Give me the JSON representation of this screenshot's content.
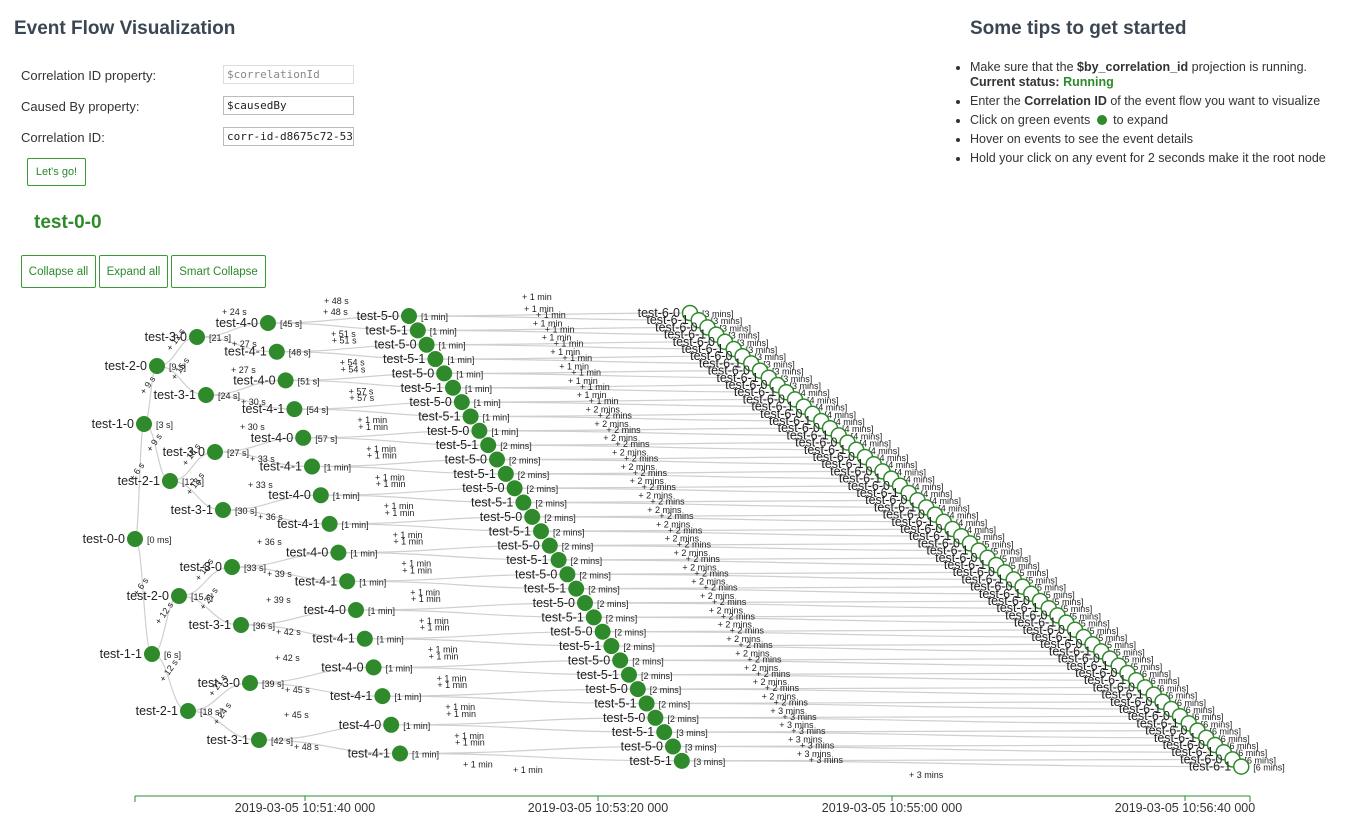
{
  "app": {
    "title": "Event Flow Visualization"
  },
  "form": {
    "correlation_property_label": "Correlation ID property:",
    "correlation_property_placeholder": "$correlationId",
    "caused_by_label": "Caused By property:",
    "caused_by_value": "$causedBy",
    "correlation_id_label": "Correlation ID:",
    "correlation_id_value": "corr-id-d8675c72-5389",
    "go_button": "Let's go!"
  },
  "root": {
    "title": "test-0-0"
  },
  "toolbar": {
    "collapse_all": "Collapse all",
    "expand_all": "Expand all",
    "smart_collapse": "Smart Collapse"
  },
  "tips": {
    "title": "Some tips to get started",
    "t1_pre": "Make sure that the ",
    "t1_bold": "$by_correlation_id",
    "t1_post": " projection is running.",
    "status_label": "Current status: ",
    "status_value": "Running",
    "t2_pre": "Enter the ",
    "t2_bold": "Correlation ID",
    "t2_post": " of the event flow you want to visualize",
    "t3_pre": "Click on green events",
    "t3_post": " to expand",
    "t4": "Hover on events to see the event details",
    "t5": "Hold your click on any event for 2 seconds make it the root node"
  },
  "colors": {
    "node": "#2f8a2c",
    "accent": "#2f8a2c",
    "edge": "#cfcfcf",
    "heading": "#3b4653"
  },
  "graph": {
    "axis_ticks": [
      "2019-03-05 10:51:40 000",
      "2019-03-05 10:53:20 000",
      "2019-03-05 10:55:00 000",
      "2019-03-05 10:56:40 000"
    ],
    "main_nodes": [
      {
        "name": "test-0-0",
        "time": "[0 ms]"
      },
      {
        "name": "test-1-0",
        "time": "[3 s]"
      },
      {
        "name": "test-1-1",
        "time": "[6 s]"
      },
      {
        "name": "test-2-0",
        "time": "[9 s]"
      },
      {
        "name": "test-2-1",
        "time": "[12 s]"
      },
      {
        "name": "test-2-0",
        "time": "[15 s]"
      },
      {
        "name": "test-2-1",
        "time": "[18 s]"
      },
      {
        "name": "test-3-0",
        "time": "[21 s]"
      },
      {
        "name": "test-3-1",
        "time": "[24 s]"
      },
      {
        "name": "test-3-0",
        "time": "[27 s]"
      },
      {
        "name": "test-3-1",
        "time": "[30 s]"
      },
      {
        "name": "test-3-0",
        "time": "[33 s]"
      },
      {
        "name": "test-3-1",
        "time": "[36 s]"
      },
      {
        "name": "test-3-0",
        "time": "[39 s]"
      },
      {
        "name": "test-3-1",
        "time": "[42 s]"
      }
    ],
    "main_edges": [
      {
        "label": "+ 3 s"
      },
      {
        "label": "+ 6 s"
      },
      {
        "label": "+ 6 s"
      },
      {
        "label": "+ 9 s"
      },
      {
        "label": "+ 9 s"
      },
      {
        "label": "+ 12 s"
      },
      {
        "label": "+ 12 s"
      },
      {
        "label": "+ 12 s"
      },
      {
        "label": "+ 15 s"
      },
      {
        "label": "+ 15 s"
      },
      {
        "label": "+ 18 s"
      },
      {
        "label": "+ 18 s"
      },
      {
        "label": "+ 21 s"
      },
      {
        "label": "+ 21 s"
      },
      {
        "label": "+ 24 s"
      }
    ],
    "layer4": [
      {
        "name": "test-4-0",
        "time": "[45 s]",
        "edge": "+ 24 s"
      },
      {
        "name": "test-4-1",
        "time": "[48 s]",
        "edge": "+ 27 s"
      },
      {
        "name": "test-4-0",
        "time": "[51 s]",
        "edge": "+ 27 s"
      },
      {
        "name": "test-4-1",
        "time": "[54 s]",
        "edge": "+ 30 s"
      },
      {
        "name": "test-4-0",
        "time": "[57 s]",
        "edge": "+ 30 s"
      },
      {
        "name": "test-4-1",
        "time": "[1 min]",
        "edge": "+ 33 s"
      },
      {
        "name": "test-4-0",
        "time": "[1 min]",
        "edge": "+ 33 s"
      },
      {
        "name": "test-4-1",
        "time": "[1 min]",
        "edge": "+ 36 s"
      },
      {
        "name": "test-4-0",
        "time": "[1 min]",
        "edge": "+ 36 s"
      },
      {
        "name": "test-4-1",
        "time": "[1 min]",
        "edge": "+ 39 s"
      },
      {
        "name": "test-4-0",
        "time": "[1 min]",
        "edge": "+ 39 s"
      },
      {
        "name": "test-4-1",
        "time": "[1 min]",
        "edge": "+ 42 s"
      },
      {
        "name": "test-4-0",
        "time": "[1 min]",
        "edge": "+ 42 s"
      },
      {
        "name": "test-4-1",
        "time": "[1 min]",
        "edge": "+ 45 s"
      },
      {
        "name": "test-4-0",
        "time": "[1 min]",
        "edge": "+ 45 s"
      },
      {
        "name": "test-4-1",
        "time": "[1 min]",
        "edge": "+ 48 s"
      }
    ],
    "layer5": [
      {
        "name": "test-5-0",
        "time": "[1 min]",
        "edge": "+ 48 s"
      },
      {
        "name": "test-5-1",
        "time": "[1 min]",
        "edge": "+ 51 s"
      },
      {
        "name": "test-5-0",
        "time": "[1 min]",
        "edge": "+ 51 s"
      },
      {
        "name": "test-5-1",
        "time": "[1 min]",
        "edge": "+ 54 s"
      },
      {
        "name": "test-5-0",
        "time": "[1 min]",
        "edge": "+ 54 s"
      },
      {
        "name": "test-5-1",
        "time": "[1 min]",
        "edge": "+ 57 s"
      },
      {
        "name": "test-5-0",
        "time": "[1 min]",
        "edge": "+ 57 s"
      },
      {
        "name": "test-5-1",
        "time": "[1 min]",
        "edge": "+ 1 min"
      },
      {
        "name": "test-5-0",
        "time": "[1 min]",
        "edge": "+ 1 min"
      },
      {
        "name": "test-5-1",
        "time": "[2 mins]",
        "edge": "+ 1 min"
      },
      {
        "name": "test-5-0",
        "time": "[2 mins]",
        "edge": "+ 1 min"
      },
      {
        "name": "test-5-1",
        "time": "[2 mins]",
        "edge": "+ 1 min"
      },
      {
        "name": "test-5-0",
        "time": "[2 mins]",
        "edge": "+ 1 min"
      },
      {
        "name": "test-5-1",
        "time": "[2 mins]",
        "edge": "+ 1 min"
      },
      {
        "name": "test-5-0",
        "time": "[2 mins]",
        "edge": "+ 1 min"
      },
      {
        "name": "test-5-1",
        "time": "[2 mins]",
        "edge": "+ 1 min"
      },
      {
        "name": "test-5-0",
        "time": "[2 mins]",
        "edge": "+ 1 min"
      },
      {
        "name": "test-5-1",
        "time": "[2 mins]",
        "edge": "+ 1 min"
      },
      {
        "name": "test-5-0",
        "time": "[2 mins]",
        "edge": "+ 1 min"
      },
      {
        "name": "test-5-1",
        "time": "[2 mins]",
        "edge": "+ 1 min"
      },
      {
        "name": "test-5-0",
        "time": "[2 mins]",
        "edge": "+ 1 min"
      },
      {
        "name": "test-5-1",
        "time": "[2 mins]",
        "edge": "+ 1 min"
      },
      {
        "name": "test-5-0",
        "time": "[2 mins]",
        "edge": "+ 1 min"
      },
      {
        "name": "test-5-1",
        "time": "[2 mins]",
        "edge": "+ 1 min"
      },
      {
        "name": "test-5-0",
        "time": "[2 mins]",
        "edge": "+ 1 min"
      },
      {
        "name": "test-5-1",
        "time": "[2 mins]",
        "edge": "+ 1 min"
      },
      {
        "name": "test-5-0",
        "time": "[2 mins]",
        "edge": "+ 1 min"
      },
      {
        "name": "test-5-1",
        "time": "[2 mins]",
        "edge": "+ 1 min"
      },
      {
        "name": "test-5-0",
        "time": "[2 mins]",
        "edge": "+ 1 min"
      },
      {
        "name": "test-5-1",
        "time": "[3 mins]",
        "edge": "+ 1 min"
      },
      {
        "name": "test-5-0",
        "time": "[3 mins]",
        "edge": "+ 1 min"
      },
      {
        "name": "test-5-1",
        "time": "[3 mins]",
        "edge": "+ 1 min"
      }
    ],
    "layer6_label": "test-6-0",
    "layer6_labels": [
      "test-6-0",
      "test-6-1"
    ],
    "layer6_times": [
      "[3 mins]",
      "[3 mins]",
      "[3 mins]",
      "[3 mins]",
      "[3 mins]",
      "[3 mins]",
      "[3 mins]",
      "[3 mins]",
      "[3 mins]",
      "[3 mins]",
      "[3 mins]",
      "[4 mins]",
      "[4 mins]",
      "[4 mins]",
      "[4 mins]",
      "[4 mins]",
      "[4 mins]",
      "[4 mins]",
      "[4 mins]",
      "[4 mins]",
      "[4 mins]",
      "[4 mins]",
      "[4 mins]",
      "[4 mins]",
      "[4 mins]",
      "[4 mins]",
      "[4 mins]",
      "[4 mins]",
      "[4 mins]",
      "[4 mins]",
      "[4 mins]",
      "[5 mins]",
      "[5 mins]",
      "[5 mins]",
      "[5 mins]",
      "[5 mins]",
      "[5 mins]",
      "[5 mins]",
      "[5 mins]",
      "[5 mins]",
      "[5 mins]",
      "[5 mins]",
      "[5 mins]",
      "[5 mins]",
      "[5 mins]",
      "[5 mins]",
      "[5 mins]",
      "[5 mins]",
      "[5 mins]",
      "[5 mins]",
      "[6 mins]",
      "[6 mins]",
      "[6 mins]",
      "[6 mins]",
      "[6 mins]",
      "[6 mins]",
      "[6 mins]",
      "[6 mins]",
      "[6 mins]",
      "[6 mins]",
      "[6 mins]",
      "[6 mins]",
      "[6 mins]",
      "[6 mins]"
    ],
    "layer6_edges": [
      "+ 1 min",
      "+ 1 min",
      "+ 1 min",
      "+ 1 min",
      "+ 1 min",
      "+ 1 min",
      "+ 1 min",
      "+ 1 min",
      "+ 1 min",
      "+ 1 min",
      "+ 1 min",
      "+ 1 min",
      "+ 1 min",
      "+ 1 min",
      "+ 2 mins",
      "+ 2 mins",
      "+ 2 mins",
      "+ 2 mins",
      "+ 2 mins",
      "+ 2 mins",
      "+ 2 mins",
      "+ 2 mins",
      "+ 2 mins",
      "+ 2 mins",
      "+ 2 mins",
      "+ 2 mins",
      "+ 2 mins",
      "+ 2 mins",
      "+ 2 mins",
      "+ 2 mins",
      "+ 2 mins",
      "+ 2 mins",
      "+ 2 mins",
      "+ 2 mins",
      "+ 2 mins",
      "+ 2 mins",
      "+ 2 mins",
      "+ 2 mins",
      "+ 2 mins",
      "+ 2 mins",
      "+ 2 mins",
      "+ 2 mins",
      "+ 2 mins",
      "+ 2 mins",
      "+ 2 mins",
      "+ 2 mins",
      "+ 2 mins",
      "+ 2 mins",
      "+ 2 mins",
      "+ 2 mins",
      "+ 2 mins",
      "+ 2 mins",
      "+ 2 mins",
      "+ 2 mins",
      "+ 2 mins",
      "+ 2 mins",
      "+ 3 mins",
      "+ 3 mins",
      "+ 3 mins",
      "+ 3 mins",
      "+ 3 mins",
      "+ 3 mins",
      "+ 3 mins",
      "+ 3 mins"
    ]
  }
}
